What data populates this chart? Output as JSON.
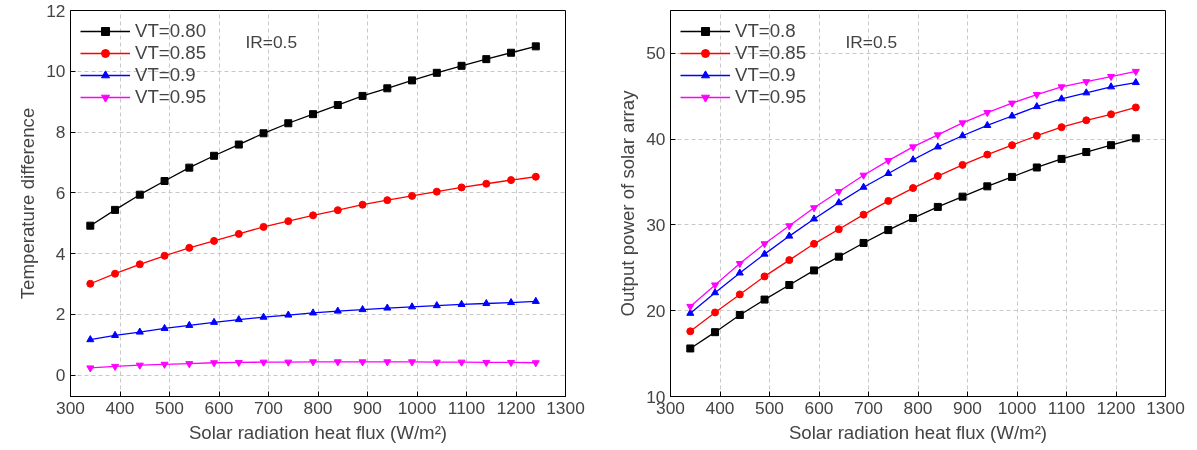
{
  "chart_data": [
    {
      "type": "line",
      "xlabel": "Solar radiation heat flux (W/m²)",
      "ylabel": "Temperature difference",
      "annotations": [
        "IR=0.5"
      ],
      "x": [
        340,
        390,
        440,
        490,
        540,
        590,
        640,
        690,
        740,
        790,
        840,
        890,
        940,
        990,
        1040,
        1090,
        1140,
        1190,
        1240
      ],
      "xlim": [
        300,
        1300
      ],
      "xticks": [
        300,
        400,
        500,
        600,
        700,
        800,
        900,
        1000,
        1100,
        1200,
        1300
      ],
      "ylim": [
        -0.7,
        12
      ],
      "yticks": [
        0,
        2,
        4,
        6,
        8,
        10,
        12
      ],
      "grid": true,
      "legend": "top left",
      "series": [
        {
          "name": "VT=0.80",
          "color": "#000000",
          "marker": "square",
          "values": [
            4.92,
            5.44,
            5.94,
            6.39,
            6.83,
            7.22,
            7.59,
            7.96,
            8.29,
            8.59,
            8.89,
            9.19,
            9.44,
            9.7,
            9.95,
            10.18,
            10.4,
            10.61,
            10.82
          ]
        },
        {
          "name": "VT=0.85",
          "color": "#ff0000",
          "marker": "circle",
          "values": [
            3.01,
            3.34,
            3.65,
            3.93,
            4.19,
            4.42,
            4.65,
            4.88,
            5.07,
            5.26,
            5.43,
            5.61,
            5.76,
            5.9,
            6.04,
            6.18,
            6.3,
            6.42,
            6.53
          ]
        },
        {
          "name": "VT=0.9",
          "color": "#0000ff",
          "marker": "triangle",
          "values": [
            1.17,
            1.31,
            1.42,
            1.54,
            1.64,
            1.74,
            1.83,
            1.91,
            1.98,
            2.05,
            2.11,
            2.16,
            2.21,
            2.25,
            2.29,
            2.33,
            2.36,
            2.39,
            2.43
          ]
        },
        {
          "name": "VT=0.95",
          "color": "#ff00ff",
          "marker": "triangle",
          "values": [
            0.24,
            0.29,
            0.33,
            0.36,
            0.38,
            0.41,
            0.42,
            0.43,
            0.43,
            0.44,
            0.44,
            0.44,
            0.44,
            0.44,
            0.43,
            0.43,
            0.42,
            0.42,
            0.41
          ]
        }
      ]
    },
    {
      "type": "line",
      "xlabel": "Solar radiation heat flux (W/m²)",
      "ylabel": "Output power of solar array",
      "annotations": [
        "IR=0.5"
      ],
      "x": [
        340,
        390,
        440,
        490,
        540,
        590,
        640,
        690,
        740,
        790,
        840,
        890,
        940,
        990,
        1040,
        1090,
        1140,
        1190,
        1240
      ],
      "xlim": [
        300,
        1300
      ],
      "xticks": [
        300,
        400,
        500,
        600,
        700,
        800,
        900,
        1000,
        1100,
        1200,
        1300
      ],
      "ylim": [
        10,
        55
      ],
      "yticks": [
        10,
        20,
        30,
        40,
        50
      ],
      "grid": true,
      "legend": "top left",
      "series": [
        {
          "name": "VT=0.8",
          "color": "#000000",
          "marker": "square",
          "values": [
            15.6,
            17.5,
            19.5,
            21.3,
            23.0,
            24.7,
            26.3,
            27.9,
            29.4,
            30.8,
            32.1,
            33.3,
            34.5,
            35.6,
            36.7,
            37.7,
            38.5,
            39.3,
            40.1
          ]
        },
        {
          "name": "VT=0.85",
          "color": "#ff0000",
          "marker": "circle",
          "values": [
            17.6,
            19.8,
            21.9,
            24.0,
            25.9,
            27.8,
            29.5,
            31.2,
            32.8,
            34.3,
            35.7,
            37.0,
            38.2,
            39.3,
            40.4,
            41.4,
            42.2,
            42.9,
            43.7
          ]
        },
        {
          "name": "VT=0.9",
          "color": "#0000ff",
          "marker": "triangle",
          "values": [
            19.7,
            22.1,
            24.4,
            26.6,
            28.7,
            30.7,
            32.6,
            34.4,
            36.0,
            37.6,
            39.1,
            40.4,
            41.6,
            42.7,
            43.8,
            44.7,
            45.4,
            46.1,
            46.6
          ]
        },
        {
          "name": "VT=0.95",
          "color": "#ff00ff",
          "marker": "triangle",
          "values": [
            20.5,
            23.0,
            25.5,
            27.8,
            29.9,
            32.0,
            33.9,
            35.8,
            37.5,
            39.1,
            40.5,
            41.9,
            43.1,
            44.2,
            45.2,
            46.1,
            46.7,
            47.3,
            47.9
          ]
        }
      ]
    }
  ]
}
